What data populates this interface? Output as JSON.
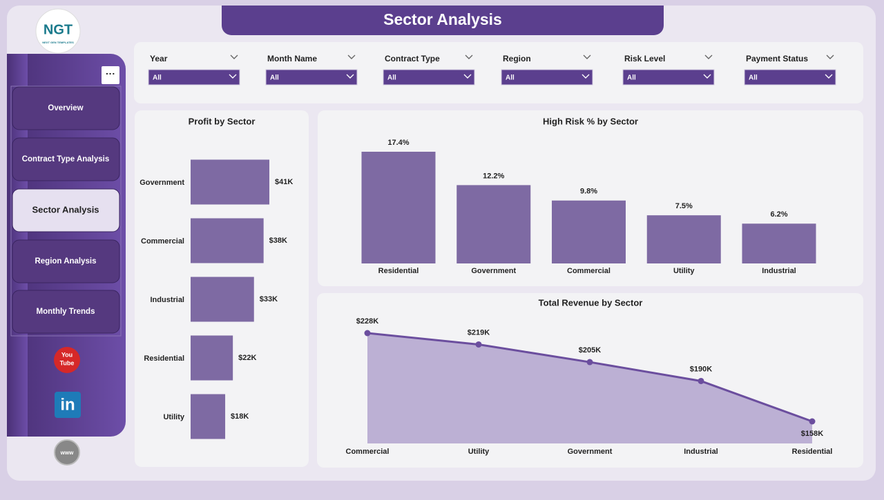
{
  "logo": {
    "text": "NGT",
    "subtext": "NEXT GEN TEMPLATES"
  },
  "header": {
    "title": "Sector Analysis"
  },
  "nav": {
    "items": [
      "Overview",
      "Contract Type Analysis",
      "Sector Analysis",
      "Region Analysis",
      "Monthly Trends"
    ],
    "active": 2
  },
  "social": {
    "youtube": [
      "You",
      "Tube"
    ],
    "linkedin": "in",
    "web": "www"
  },
  "filters": [
    {
      "label": "Year",
      "value": "All"
    },
    {
      "label": "Month Name",
      "value": "All"
    },
    {
      "label": "Contract Type",
      "value": "All"
    },
    {
      "label": "Region",
      "value": "All"
    },
    {
      "label": "Risk Level",
      "value": "All"
    },
    {
      "label": "Payment Status",
      "value": "All"
    }
  ],
  "chart_data": [
    {
      "type": "hbar",
      "title": "Profit by Sector",
      "color": "#7e6aa3",
      "categories": [
        "Government",
        "Commercial",
        "Industrial",
        "Residential",
        "Utility"
      ],
      "values": [
        41000,
        38000,
        33000,
        22000,
        18000
      ],
      "value_labels": [
        "$41K",
        "$38K",
        "$33K",
        "$22K",
        "$18K"
      ]
    },
    {
      "type": "bar",
      "title": "High Risk % by Sector",
      "color": "#7e6aa3",
      "categories": [
        "Residential",
        "Government",
        "Commercial",
        "Utility",
        "Industrial"
      ],
      "values": [
        17.4,
        12.2,
        9.8,
        7.5,
        6.2
      ],
      "value_labels": [
        "17.4%",
        "12.2%",
        "9.8%",
        "7.5%",
        "6.2%"
      ]
    },
    {
      "type": "area",
      "title": "Total Revenue by Sector",
      "color": "#6b4e9e",
      "fill": "#bcb0d4",
      "categories": [
        "Commercial",
        "Utility",
        "Government",
        "Industrial",
        "Residential"
      ],
      "values": [
        228000,
        219000,
        205000,
        190000,
        158000
      ],
      "value_labels": [
        "$228K",
        "$219K",
        "$205K",
        "$190K",
        "$158K"
      ]
    }
  ]
}
